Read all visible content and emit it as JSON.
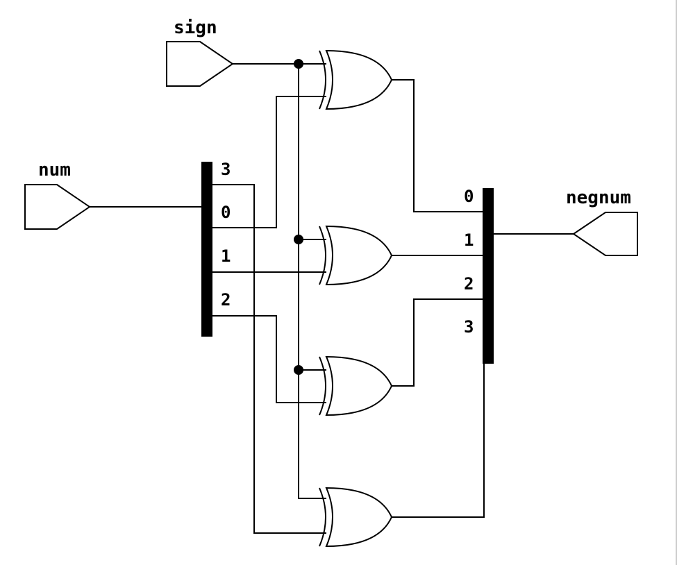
{
  "diagram": {
    "ports": {
      "sign": "sign",
      "num": "num",
      "negnum": "negnum"
    },
    "split_pins": [
      "3",
      "0",
      "1",
      "2"
    ],
    "join_pins": [
      "0",
      "1",
      "2",
      "3"
    ],
    "gates": [
      "xor",
      "xor",
      "xor",
      "xor"
    ]
  }
}
